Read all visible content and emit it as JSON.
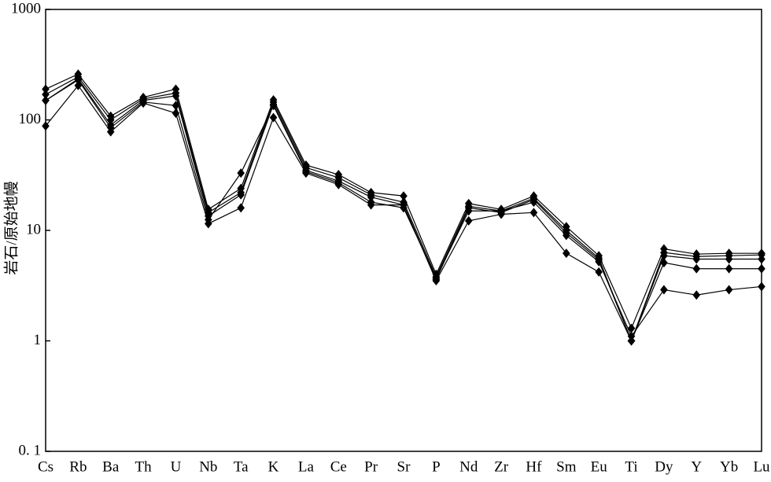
{
  "chart_data": {
    "type": "line",
    "ylabel": "岩石/原始地幔",
    "log_scale": true,
    "categories": [
      "Cs",
      "Rb",
      "Ba",
      "Th",
      "U",
      "Nb",
      "Ta",
      "K",
      "La",
      "Ce",
      "Pr",
      "Sr",
      "P",
      "Nd",
      "Zr",
      "Hf",
      "Sm",
      "Eu",
      "Ti",
      "Dy",
      "Y",
      "Yb",
      "Lu"
    ],
    "ylim": [
      0.1,
      1000
    ],
    "yticks": [
      {
        "value": 0.1,
        "label": "0. 1"
      },
      1,
      10,
      100,
      1000
    ],
    "series": [
      {
        "color": "#000000",
        "values": [
          190,
          260,
          108,
          160,
          190,
          15.5,
          24,
          152,
          39,
          32,
          22,
          20.5,
          4.0,
          17.5,
          15.5,
          20.5,
          10.8,
          5.9,
          1.3,
          6.8,
          6.1,
          6.2,
          6.2
        ]
      },
      {
        "color": "#000000",
        "values": [
          170,
          245,
          100,
          155,
          175,
          14.5,
          22,
          145,
          37,
          30,
          21,
          18,
          3.8,
          16.5,
          15,
          19.5,
          10,
          5.6,
          1.0,
          6.3,
          5.8,
          5.9,
          6.0
        ]
      },
      {
        "color": "#000000",
        "values": [
          150,
          235,
          90,
          150,
          165,
          13.5,
          21,
          138,
          35,
          28,
          20,
          17,
          3.6,
          16,
          14.5,
          19,
          9.5,
          5.4,
          1.0,
          5.9,
          5.5,
          5.5,
          5.5
        ]
      },
      {
        "color": "#000000",
        "values": [
          88,
          205,
          78,
          142,
          115,
          11.5,
          16,
          105,
          33,
          26,
          17,
          17,
          3.5,
          12.2,
          14,
          14.5,
          6.2,
          4.2,
          1.0,
          5.1,
          4.5,
          4.5,
          4.5
        ]
      },
      {
        "color": "#000000",
        "values": [
          150,
          230,
          85,
          145,
          135,
          12.5,
          33,
          135,
          34,
          27,
          18,
          16,
          3.7,
          15,
          15,
          18,
          9.0,
          5.2,
          1.1,
          2.9,
          2.6,
          2.9,
          3.1
        ]
      }
    ]
  }
}
